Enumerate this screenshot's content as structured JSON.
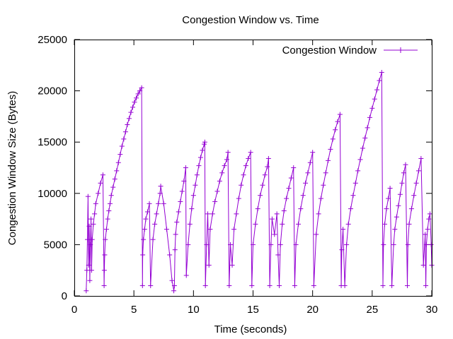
{
  "chart_data": {
    "type": "line",
    "title": "Congestion Window vs. Time",
    "xlabel": "Time (seconds)",
    "ylabel": "Congestion Window Size (Bytes)",
    "xlim": [
      0,
      30
    ],
    "ylim": [
      0,
      25000
    ],
    "x_ticks": [
      "0",
      "5",
      "10",
      "15",
      "20",
      "25",
      "30"
    ],
    "y_ticks": [
      "0",
      "5000",
      "10000",
      "15000",
      "20000",
      "25000"
    ],
    "grid": false,
    "legend_position": "top-right",
    "series": [
      {
        "name": "Congestion Window",
        "color": "#9400d3",
        "marker": "plus",
        "x": [
          1.0,
          1.05,
          1.1,
          1.15,
          1.2,
          1.25,
          1.3,
          1.35,
          1.4,
          1.45,
          1.5,
          1.6,
          1.7,
          1.8,
          2.0,
          2.2,
          2.4,
          2.5,
          2.52,
          2.55,
          2.6,
          2.7,
          2.8,
          2.9,
          3.0,
          3.1,
          3.25,
          3.4,
          3.55,
          3.7,
          3.85,
          4.0,
          4.15,
          4.3,
          4.45,
          4.6,
          4.75,
          4.9,
          5.05,
          5.2,
          5.35,
          5.5,
          5.65,
          5.72,
          5.74,
          5.8,
          5.9,
          6.0,
          6.15,
          6.3,
          6.4,
          6.6,
          6.75,
          6.9,
          7.05,
          7.2,
          7.25,
          7.5,
          7.75,
          8.0,
          8.2,
          8.35,
          8.4,
          8.45,
          8.5,
          8.6,
          8.75,
          8.9,
          9.05,
          9.2,
          9.35,
          9.4,
          9.55,
          9.7,
          9.85,
          10.0,
          10.15,
          10.3,
          10.45,
          10.6,
          10.75,
          10.9,
          10.95,
          11.0,
          11.1,
          11.2,
          11.3,
          11.4,
          11.6,
          11.8,
          12.0,
          12.2,
          12.4,
          12.6,
          12.8,
          12.9,
          13.0,
          13.1,
          13.25,
          13.4,
          13.6,
          13.8,
          14.0,
          14.2,
          14.4,
          14.6,
          14.8,
          14.9,
          15.0,
          15.2,
          15.4,
          15.6,
          15.8,
          16.0,
          16.2,
          16.3,
          16.4,
          16.5,
          16.6,
          16.8,
          17.0,
          17.1,
          17.2,
          17.3,
          17.45,
          17.6,
          17.8,
          18.0,
          18.2,
          18.4,
          18.5,
          18.6,
          18.8,
          19.0,
          19.2,
          19.4,
          19.6,
          19.8,
          20.0,
          20.1,
          20.3,
          20.5,
          20.7,
          20.9,
          21.1,
          21.3,
          21.5,
          21.7,
          21.9,
          22.1,
          22.3,
          22.4,
          22.45,
          22.55,
          22.7,
          22.85,
          23.0,
          23.2,
          23.4,
          23.6,
          23.8,
          24.0,
          24.2,
          24.4,
          24.6,
          24.8,
          25.0,
          25.2,
          25.4,
          25.6,
          25.8,
          25.9,
          25.95,
          26.05,
          26.2,
          26.35,
          26.5,
          26.65,
          26.8,
          26.9,
          27.05,
          27.2,
          27.35,
          27.5,
          27.65,
          27.8,
          27.95,
          28.0,
          28.1,
          28.3,
          28.5,
          28.7,
          28.9,
          29.1,
          29.3,
          29.45,
          29.5,
          29.55,
          29.65,
          29.75,
          29.85,
          29.95,
          30.0
        ],
        "y": [
          500,
          2500,
          5500,
          9700,
          3000,
          6800,
          1500,
          5000,
          7500,
          2500,
          5500,
          7000,
          8000,
          9000,
          10000,
          11000,
          11800,
          1000,
          2500,
          4000,
          5500,
          6500,
          7500,
          8300,
          9000,
          9800,
          10600,
          11400,
          12200,
          13000,
          13800,
          14600,
          15300,
          16000,
          16700,
          17300,
          17900,
          18400,
          18900,
          19300,
          19700,
          20000,
          20300,
          1000,
          4000,
          5500,
          6500,
          7500,
          8200,
          9000,
          1000,
          5500,
          7000,
          8000,
          9000,
          10000,
          10700,
          9000,
          6500,
          4000,
          1500,
          500,
          1000,
          4500,
          6000,
          7200,
          8200,
          9200,
          10200,
          11200,
          12500,
          2000,
          5000,
          7000,
          8500,
          9800,
          10800,
          11800,
          12700,
          13500,
          14200,
          14800,
          15000,
          1000,
          5000,
          8000,
          3000,
          6500,
          8000,
          9200,
          10200,
          11200,
          12000,
          12700,
          13300,
          14000,
          1000,
          5000,
          3000,
          6500,
          8000,
          9500,
          10800,
          11800,
          12700,
          13400,
          14000,
          1000,
          5000,
          7000,
          8500,
          9800,
          10800,
          11800,
          12600,
          13400,
          1000,
          5000,
          7500,
          6000,
          8000,
          4000,
          1000,
          5000,
          7000,
          8300,
          9500,
          10500,
          11500,
          12500,
          1000,
          5000,
          7000,
          8500,
          9800,
          11000,
          12000,
          13000,
          14000,
          1000,
          6000,
          8000,
          9500,
          10800,
          12000,
          13200,
          14300,
          15300,
          16200,
          17000,
          17700,
          1000,
          4500,
          6500,
          1000,
          5000,
          7000,
          8500,
          9800,
          11000,
          12200,
          13300,
          14400,
          15400,
          16400,
          17400,
          18300,
          19200,
          20100,
          21000,
          21800,
          1000,
          5000,
          7000,
          8500,
          9500,
          10500,
          1000,
          5000,
          6500,
          7700,
          8800,
          9900,
          11000,
          12000,
          12800,
          1000,
          5000,
          7000,
          8500,
          9800,
          11000,
          12200,
          13400,
          3000,
          6000,
          1000,
          5000,
          6500,
          7500,
          8000,
          5000,
          3000
        ]
      }
    ]
  }
}
